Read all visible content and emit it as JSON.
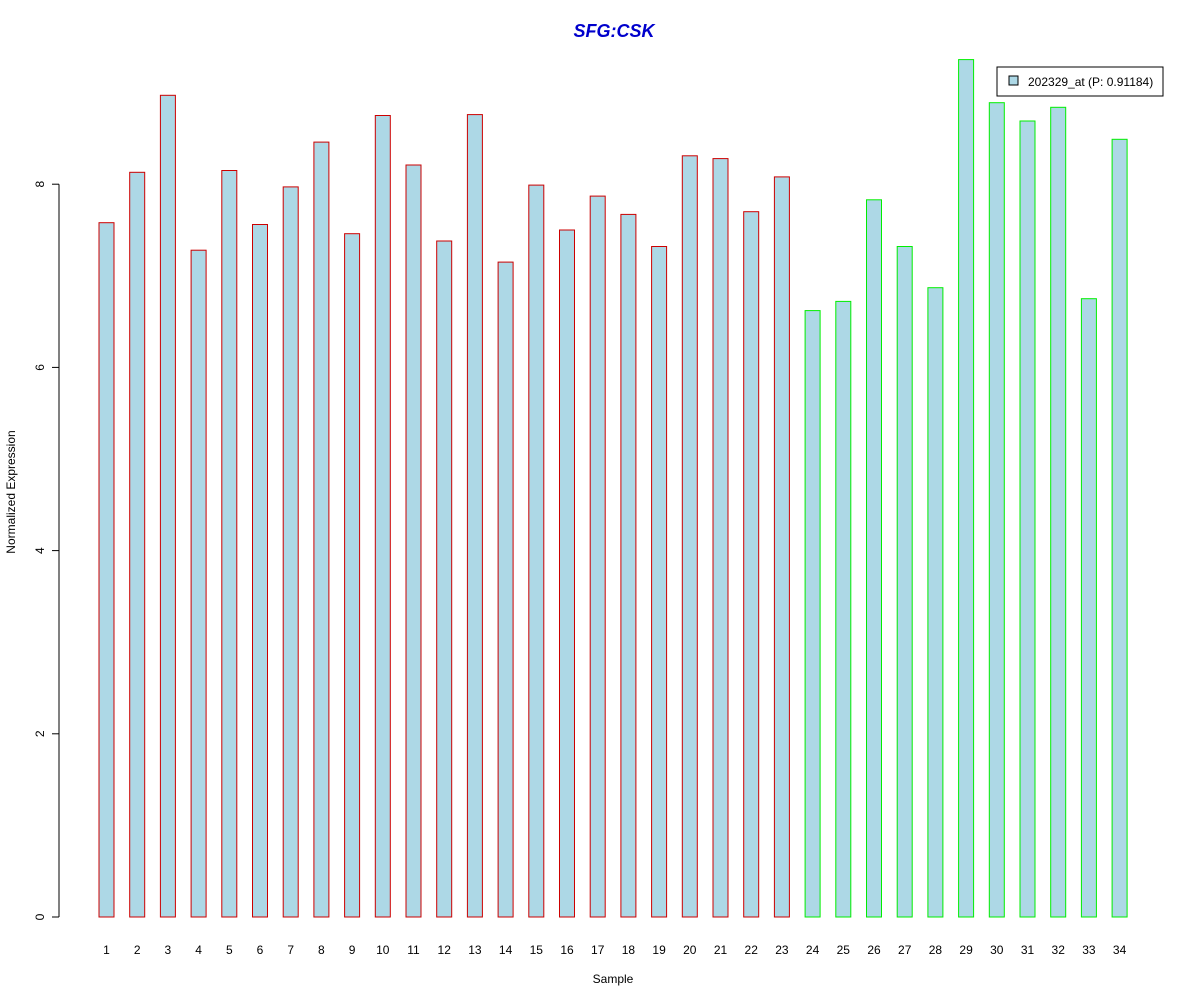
{
  "chart_data": {
    "type": "bar",
    "title": "SFG:CSK",
    "xlabel": "Sample",
    "ylabel": "Normalized Expression",
    "ylim": [
      0,
      9.5
    ],
    "yticks": [
      0,
      2,
      4,
      6,
      8
    ],
    "grid": false,
    "legend_position": "top-right",
    "categories": [
      "1",
      "2",
      "3",
      "4",
      "5",
      "6",
      "7",
      "8",
      "9",
      "10",
      "11",
      "12",
      "13",
      "14",
      "15",
      "16",
      "17",
      "18",
      "19",
      "20",
      "21",
      "22",
      "23",
      "24",
      "25",
      "26",
      "27",
      "28",
      "29",
      "30",
      "31",
      "32",
      "33",
      "34"
    ],
    "series": [
      {
        "name": "202329_at (P: 0.91184)",
        "values": [
          7.58,
          8.13,
          8.97,
          7.28,
          8.15,
          7.56,
          7.97,
          8.46,
          7.46,
          8.75,
          8.21,
          7.38,
          8.76,
          7.15,
          7.99,
          7.5,
          7.87,
          7.67,
          7.32,
          8.31,
          8.28,
          7.7,
          8.08,
          6.62,
          6.72,
          7.83,
          7.32,
          6.87,
          9.36,
          8.89,
          8.69,
          8.84,
          6.75,
          8.49
        ],
        "groups": [
          1,
          1,
          1,
          1,
          1,
          1,
          1,
          1,
          1,
          1,
          1,
          1,
          1,
          1,
          1,
          1,
          1,
          1,
          1,
          1,
          1,
          1,
          1,
          2,
          2,
          2,
          2,
          2,
          2,
          2,
          2,
          2,
          2,
          2
        ]
      }
    ],
    "colors": {
      "bar_fill": "#add8e6",
      "group1_border": "#cc0000",
      "group2_border": "#00ee00",
      "title": "#0000cc",
      "axis": "#000000"
    }
  }
}
